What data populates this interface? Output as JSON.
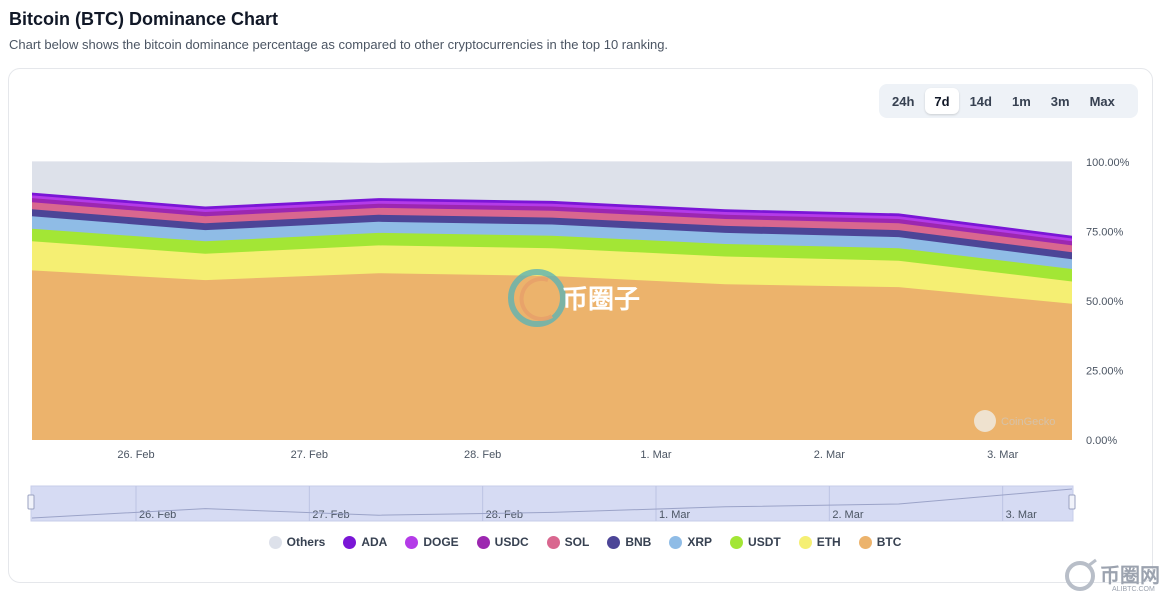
{
  "page": {
    "title": "Bitcoin (BTC) Dominance Chart",
    "subtitle": "Chart below shows the bitcoin dominance percentage as compared to other cryptocurrencies in the top 10 ranking."
  },
  "range_buttons": [
    {
      "label": "24h",
      "active": false
    },
    {
      "label": "7d",
      "active": true
    },
    {
      "label": "14d",
      "active": false
    },
    {
      "label": "1m",
      "active": false
    },
    {
      "label": "3m",
      "active": false
    },
    {
      "label": "Max",
      "active": false
    }
  ],
  "watermark": {
    "text": "币圈子",
    "source": "CoinGecko"
  },
  "corner_logo": {
    "text": "币圈网",
    "sub": "ALIBTC.COM"
  },
  "chart_data": {
    "type": "area",
    "stacked": true,
    "title": "Bitcoin (BTC) Dominance Chart",
    "x": [
      0,
      1,
      2,
      3,
      4,
      5,
      6
    ],
    "xticks": [
      "26. Feb",
      "27. Feb",
      "28. Feb",
      "1. Mar",
      "2. Mar",
      "3. Mar"
    ],
    "xtick_positions": [
      0.6,
      1.6,
      2.6,
      3.6,
      4.6,
      5.6
    ],
    "yticks": [
      "0.00%",
      "25.00%",
      "50.00%",
      "75.00%",
      "100.00%"
    ],
    "ylim": [
      0,
      100
    ],
    "series": [
      {
        "name": "BTC",
        "color": "#ecb36c",
        "values": [
          61.0,
          57.5,
          60.0,
          59.0,
          56.0,
          55.0,
          49.0
        ]
      },
      {
        "name": "ETH",
        "color": "#f5ef73",
        "values": [
          10.5,
          9.5,
          10.0,
          10.0,
          10.0,
          9.5,
          8.0
        ]
      },
      {
        "name": "USDT",
        "color": "#a3e635",
        "values": [
          4.5,
          4.5,
          4.5,
          4.5,
          4.5,
          4.5,
          4.5
        ]
      },
      {
        "name": "XRP",
        "color": "#8fbce6",
        "values": [
          4.5,
          4.0,
          4.0,
          4.0,
          4.0,
          4.0,
          3.5
        ]
      },
      {
        "name": "BNB",
        "color": "#4c4597",
        "values": [
          2.5,
          2.5,
          2.5,
          2.5,
          2.5,
          2.5,
          2.5
        ]
      },
      {
        "name": "SOL",
        "color": "#d9678f",
        "values": [
          2.5,
          2.5,
          2.5,
          2.5,
          2.5,
          2.5,
          2.5
        ]
      },
      {
        "name": "USDC",
        "color": "#9c27b0",
        "values": [
          1.5,
          1.5,
          1.5,
          1.5,
          1.5,
          1.5,
          1.5
        ]
      },
      {
        "name": "DOGE",
        "color": "#b43be8",
        "values": [
          1.0,
          1.0,
          1.0,
          1.0,
          1.0,
          1.0,
          1.0
        ]
      },
      {
        "name": "ADA",
        "color": "#7a16d6",
        "values": [
          1.0,
          1.0,
          1.0,
          1.0,
          1.0,
          1.0,
          1.0
        ]
      },
      {
        "name": "Others",
        "color": "#dde1ea",
        "values": [
          11.0,
          16.0,
          12.5,
          14.0,
          17.0,
          18.5,
          26.5
        ]
      }
    ],
    "legend": [
      "Others",
      "ADA",
      "DOGE",
      "USDC",
      "SOL",
      "BNB",
      "XRP",
      "USDT",
      "ETH",
      "BTC"
    ],
    "grid": true
  }
}
